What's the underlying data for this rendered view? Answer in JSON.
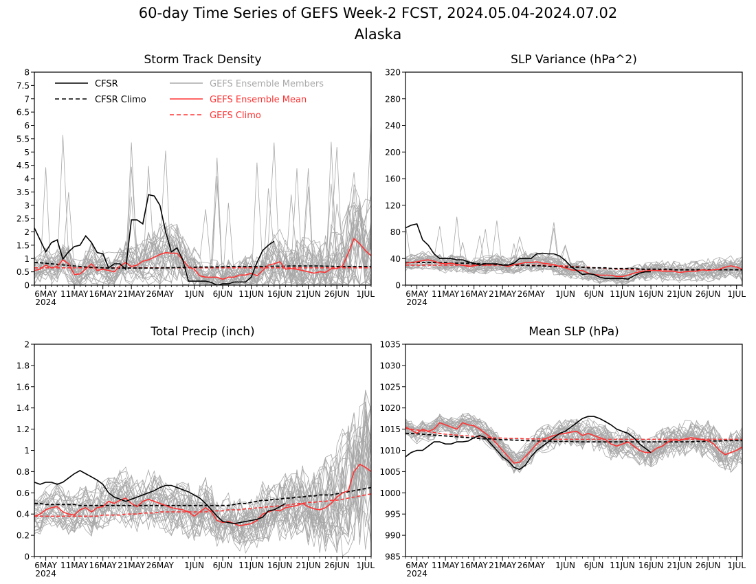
{
  "figure": {
    "title": "60-day Time Series of GEFS Week-2 FCST, 2024.05.04-2024.07.02",
    "subtitle": "Alaska"
  },
  "legend": [
    {
      "label": "CFSR",
      "color": "#000000",
      "dash": false
    },
    {
      "label": "CFSR Climo",
      "color": "#000000",
      "dash": true
    },
    {
      "label": "GEFS Ensemble Members",
      "color": "#aaaaaa",
      "dash": false
    },
    {
      "label": "GEFS Ensemble Mean",
      "color": "#ff3333",
      "dash": false
    },
    {
      "label": "GEFS Climo",
      "color": "#ff3333",
      "dash": true
    }
  ],
  "colors": {
    "cfsr": "#000000",
    "members": "#a8a8a8",
    "mean": "#ff3333"
  },
  "x_ticks": {
    "days": [
      2,
      7,
      12,
      17,
      22,
      28,
      33,
      38,
      43,
      48,
      53,
      58
    ],
    "labels": [
      "6MAY",
      "11MAY",
      "16MAY",
      "21MAY",
      "26MAY",
      "1JUN",
      "6JUN",
      "11JUN",
      "16JUN",
      "21JUN",
      "26JUN",
      "1JUL"
    ],
    "year_label": "2024"
  },
  "chart_data": [
    {
      "type": "line",
      "title": "Storm Track Density",
      "ylim": [
        0,
        8
      ],
      "yticks": [
        "0",
        "0.5",
        "1",
        "1.5",
        "2",
        "2.5",
        "3",
        "3.5",
        "4",
        "4.5",
        "5",
        "5.5",
        "6",
        "6.5",
        "7",
        "7.5",
        "8"
      ],
      "members_spread": 0.55,
      "series": {
        "cfsr": [
          2.15,
          1.7,
          1.25,
          1.6,
          1.7,
          0.98,
          1.25,
          1.45,
          1.5,
          1.85,
          1.6,
          1.22,
          1.18,
          0.65,
          0.8,
          0.8,
          0.6,
          2.45,
          2.45,
          2.3,
          3.4,
          3.35,
          3.0,
          2.0,
          1.25,
          1.4,
          0.95,
          0.15,
          0.15,
          0.15,
          0.15,
          0.1,
          0.0,
          0.05,
          0.05,
          0.12,
          0.12,
          0.12,
          0.3,
          0.85,
          1.3,
          1.5,
          1.65
        ],
        "cfsr_climo": [
          0.85,
          0.84,
          0.82,
          0.8,
          0.78,
          0.76,
          0.74,
          0.72,
          0.7,
          0.68,
          0.67,
          0.66,
          0.65,
          0.64,
          0.64,
          0.64,
          0.64,
          0.64,
          0.64,
          0.64,
          0.64,
          0.64,
          0.64,
          0.65,
          0.65,
          0.66,
          0.66,
          0.67,
          0.67,
          0.68,
          0.68,
          0.68,
          0.69,
          0.69,
          0.7,
          0.7,
          0.7,
          0.7,
          0.7,
          0.7,
          0.7,
          0.71,
          0.71,
          0.71,
          0.71,
          0.72,
          0.72,
          0.72,
          0.72,
          0.72,
          0.72,
          0.71,
          0.71,
          0.7,
          0.7,
          0.7,
          0.7,
          0.7,
          0.7,
          0.7
        ],
        "mean": [
          0.55,
          0.6,
          0.75,
          0.65,
          0.7,
          0.95,
          0.8,
          0.4,
          0.42,
          0.6,
          0.8,
          0.55,
          0.6,
          0.55,
          0.5,
          0.72,
          0.85,
          0.7,
          0.75,
          0.9,
          0.95,
          1.05,
          1.15,
          1.22,
          1.2,
          1.2,
          0.95,
          0.68,
          0.6,
          0.35,
          0.3,
          0.3,
          0.3,
          0.22,
          0.3,
          0.3,
          0.38,
          0.38,
          0.45,
          0.35,
          0.55,
          0.75,
          0.8,
          0.88,
          0.6,
          0.62,
          0.6,
          0.55,
          0.5,
          0.45,
          0.5,
          0.48,
          0.62,
          0.62,
          0.72,
          1.2,
          1.75,
          1.55,
          1.3,
          1.1
        ],
        "gefs_climo": [
          0.65,
          0.65,
          0.65,
          0.65,
          0.65,
          0.65,
          0.65,
          0.65,
          0.65,
          0.65,
          0.65,
          0.65,
          0.65,
          0.65,
          0.65,
          0.65,
          0.65,
          0.65,
          0.65,
          0.65,
          0.65,
          0.65,
          0.65,
          0.65,
          0.65,
          0.65,
          0.65,
          0.65,
          0.65,
          0.65,
          0.65,
          0.65,
          0.65,
          0.65,
          0.65,
          0.65,
          0.65,
          0.65,
          0.65,
          0.65,
          0.65,
          0.65,
          0.65,
          0.65,
          0.65,
          0.65,
          0.65,
          0.65,
          0.65,
          0.65,
          0.65,
          0.65,
          0.65,
          0.65,
          0.65,
          0.65,
          0.65,
          0.65,
          0.65,
          0.65
        ]
      }
    },
    {
      "type": "line",
      "title": "SLP Variance (hPa^2)",
      "ylim": [
        0,
        320
      ],
      "yticks": [
        "0",
        "40",
        "80",
        "120",
        "160",
        "200",
        "240",
        "280",
        "320"
      ],
      "members_spread": 0.38,
      "series": {
        "cfsr": [
          86,
          90,
          92,
          68,
          60,
          47,
          40,
          40,
          40,
          38,
          38,
          35,
          33,
          30,
          32,
          32,
          32,
          30,
          30,
          33,
          40,
          40,
          40,
          47,
          48,
          47,
          47,
          44,
          37,
          28,
          22,
          16,
          17,
          16,
          12,
          10,
          10,
          10,
          10,
          9,
          14,
          18,
          20,
          20
        ],
        "cfsr_climo": [
          34,
          34,
          34,
          34,
          34,
          34,
          34,
          34,
          33,
          33,
          33,
          33,
          32,
          32,
          32,
          31,
          31,
          31,
          30,
          30,
          30,
          30,
          29,
          29,
          29,
          28,
          28,
          28,
          27,
          27,
          27,
          27,
          26,
          26,
          26,
          26,
          25,
          25,
          25,
          25,
          25,
          24,
          24,
          24,
          24,
          24,
          24,
          23,
          23,
          23,
          23,
          23,
          23,
          23,
          23,
          23,
          23,
          23,
          23,
          23
        ],
        "mean": [
          33,
          34,
          35,
          37,
          38,
          36,
          33,
          32,
          33,
          31,
          30,
          28,
          29,
          31,
          30,
          31,
          32,
          30,
          28,
          31,
          32,
          34,
          34,
          35,
          33,
          32,
          31,
          28,
          26,
          23,
          22,
          22,
          18,
          16,
          15,
          15,
          15,
          13,
          13,
          15,
          18,
          20,
          21,
          22,
          22,
          21,
          21,
          21,
          19,
          20,
          21,
          21,
          23,
          22,
          23,
          24,
          27,
          29,
          27,
          24
        ],
        "gefs_climo": [
          30,
          30,
          30,
          30,
          30,
          30,
          30,
          30,
          30,
          30,
          30,
          30,
          30,
          30,
          30,
          30,
          30,
          30,
          30,
          30,
          30,
          30,
          30,
          30,
          30,
          29,
          29,
          29,
          29,
          28,
          28,
          27,
          27,
          26,
          26,
          25,
          25,
          24,
          24,
          24,
          23,
          23,
          23,
          23,
          23,
          23,
          23,
          23,
          23,
          23,
          23,
          23,
          23,
          23,
          23,
          23,
          23,
          23,
          23,
          23
        ]
      }
    },
    {
      "type": "line",
      "title": "Total Precip (inch)",
      "ylim": [
        0,
        2
      ],
      "yticks": [
        "0",
        "0.2",
        "0.4",
        "0.6",
        "0.8",
        "1",
        "1.2",
        "1.4",
        "1.6",
        "1.8",
        "2"
      ],
      "members_spread": 0.4,
      "series": {
        "cfsr": [
          0.7,
          0.68,
          0.7,
          0.7,
          0.68,
          0.7,
          0.74,
          0.78,
          0.81,
          0.78,
          0.75,
          0.72,
          0.68,
          0.6,
          0.56,
          0.54,
          0.52,
          0.54,
          0.56,
          0.58,
          0.6,
          0.62,
          0.65,
          0.67,
          0.67,
          0.65,
          0.63,
          0.61,
          0.58,
          0.55,
          0.5,
          0.44,
          0.38,
          0.33,
          0.32,
          0.31,
          0.32,
          0.33,
          0.34,
          0.35,
          0.37,
          0.43,
          0.44,
          0.47,
          0.5
        ],
        "cfsr_climo": [
          0.5,
          0.5,
          0.49,
          0.49,
          0.49,
          0.49,
          0.49,
          0.49,
          0.48,
          0.48,
          0.48,
          0.48,
          0.48,
          0.48,
          0.48,
          0.48,
          0.48,
          0.48,
          0.48,
          0.48,
          0.48,
          0.48,
          0.48,
          0.48,
          0.48,
          0.48,
          0.48,
          0.48,
          0.48,
          0.48,
          0.48,
          0.48,
          0.48,
          0.48,
          0.48,
          0.49,
          0.5,
          0.5,
          0.51,
          0.52,
          0.53,
          0.53,
          0.54,
          0.54,
          0.55,
          0.55,
          0.56,
          0.56,
          0.57,
          0.57,
          0.58,
          0.58,
          0.58,
          0.59,
          0.6,
          0.61,
          0.62,
          0.63,
          0.64,
          0.65
        ],
        "mean": [
          0.38,
          0.4,
          0.44,
          0.46,
          0.47,
          0.42,
          0.4,
          0.39,
          0.44,
          0.46,
          0.42,
          0.46,
          0.47,
          0.52,
          0.5,
          0.53,
          0.55,
          0.5,
          0.47,
          0.52,
          0.54,
          0.52,
          0.5,
          0.48,
          0.46,
          0.45,
          0.44,
          0.42,
          0.38,
          0.42,
          0.46,
          0.42,
          0.34,
          0.32,
          0.33,
          0.31,
          0.29,
          0.3,
          0.31,
          0.34,
          0.4,
          0.42,
          0.44,
          0.43,
          0.46,
          0.47,
          0.48,
          0.5,
          0.47,
          0.45,
          0.44,
          0.46,
          0.5,
          0.56,
          0.6,
          0.62,
          0.8,
          0.87,
          0.84,
          0.8
        ],
        "gefs_climo": [
          0.38,
          0.38,
          0.38,
          0.38,
          0.38,
          0.38,
          0.38,
          0.38,
          0.38,
          0.38,
          0.38,
          0.38,
          0.39,
          0.39,
          0.39,
          0.39,
          0.4,
          0.4,
          0.4,
          0.41,
          0.41,
          0.41,
          0.42,
          0.42,
          0.42,
          0.42,
          0.42,
          0.42,
          0.42,
          0.42,
          0.42,
          0.43,
          0.43,
          0.43,
          0.44,
          0.44,
          0.44,
          0.45,
          0.45,
          0.46,
          0.46,
          0.47,
          0.47,
          0.48,
          0.48,
          0.49,
          0.5,
          0.5,
          0.51,
          0.51,
          0.52,
          0.52,
          0.53,
          0.53,
          0.54,
          0.55,
          0.56,
          0.57,
          0.58,
          0.59
        ]
      }
    },
    {
      "type": "line",
      "title": "Mean SLP (hPa)",
      "ylim": [
        985,
        1035
      ],
      "yticks": [
        "985",
        "990",
        "995",
        "1000",
        "1005",
        "1010",
        "1015",
        "1020",
        "1025",
        "1030",
        "1035"
      ],
      "members_spread": 0.28,
      "series": {
        "cfsr": [
          1008.5,
          1009.5,
          1010,
          1010,
          1011,
          1012,
          1012,
          1011.5,
          1011.5,
          1012,
          1012,
          1012.2,
          1013,
          1013.5,
          1013,
          1011.5,
          1010,
          1008.5,
          1007.5,
          1006,
          1005.5,
          1006.5,
          1008.5,
          1010,
          1011,
          1012,
          1013,
          1014,
          1014.5,
          1015.5,
          1016.5,
          1017.5,
          1018,
          1018,
          1017.5,
          1016.8,
          1016,
          1015,
          1014.5,
          1014,
          1013,
          1011.5,
          1010.5,
          1009.5
        ],
        "cfsr_climo": [
          1014,
          1014,
          1013.9,
          1013.8,
          1013.7,
          1013.6,
          1013.5,
          1013.4,
          1013.3,
          1013.2,
          1013.1,
          1013,
          1012.9,
          1012.8,
          1012.7,
          1012.7,
          1012.6,
          1012.5,
          1012.5,
          1012.4,
          1012.4,
          1012.3,
          1012.3,
          1012.2,
          1012.2,
          1012.2,
          1012.1,
          1012.1,
          1012.1,
          1012.1,
          1012,
          1012,
          1012,
          1012,
          1012,
          1012,
          1012,
          1012,
          1012,
          1012,
          1012,
          1012,
          1012,
          1012,
          1012,
          1012,
          1012,
          1012,
          1012,
          1012,
          1012,
          1012.1,
          1012.1,
          1012.2,
          1012.2,
          1012.2,
          1012.3,
          1012.3,
          1012.3,
          1012.3
        ],
        "mean": [
          1015.5,
          1014.8,
          1014,
          1015,
          1014.5,
          1015,
          1016.5,
          1016,
          1015.5,
          1015,
          1016.5,
          1016,
          1015.8,
          1015,
          1014,
          1013,
          1011.5,
          1010,
          1008.5,
          1007,
          1007.2,
          1008.5,
          1010,
          1011.5,
          1012.5,
          1013,
          1013.5,
          1013.8,
          1014,
          1014.3,
          1014.5,
          1013.5,
          1014,
          1013.5,
          1013,
          1012.5,
          1011.5,
          1011,
          1011.5,
          1012,
          1011,
          1010,
          1009.5,
          1009.5,
          1010.5,
          1011,
          1012,
          1012.5,
          1012.3,
          1012.7,
          1013,
          1012.8,
          1012.5,
          1012.3,
          1011.5,
          1010,
          1009,
          1009.5,
          1010,
          1010.8
        ],
        "gefs_climo": [
          1015.2,
          1015,
          1014.8,
          1014.6,
          1014.4,
          1014.2,
          1014,
          1013.8,
          1013.7,
          1013.6,
          1013.5,
          1013.4,
          1013.3,
          1013.2,
          1013.1,
          1013,
          1012.9,
          1012.9,
          1012.8,
          1012.8,
          1012.8,
          1012.7,
          1012.7,
          1012.7,
          1012.7,
          1012.6,
          1012.6,
          1012.6,
          1012.6,
          1012.6,
          1012.6,
          1012.6,
          1012.6,
          1012.6,
          1012.6,
          1012.6,
          1012.6,
          1012.6,
          1012.6,
          1012.6,
          1012.6,
          1012.6,
          1012.6,
          1012.6,
          1012.6,
          1012.6,
          1012.6,
          1012.6,
          1012.6,
          1012.6,
          1012.6,
          1012.6,
          1012.6,
          1012.6,
          1012.6,
          1012.6,
          1012.6,
          1012.6,
          1012.6,
          1012.6
        ]
      }
    }
  ]
}
